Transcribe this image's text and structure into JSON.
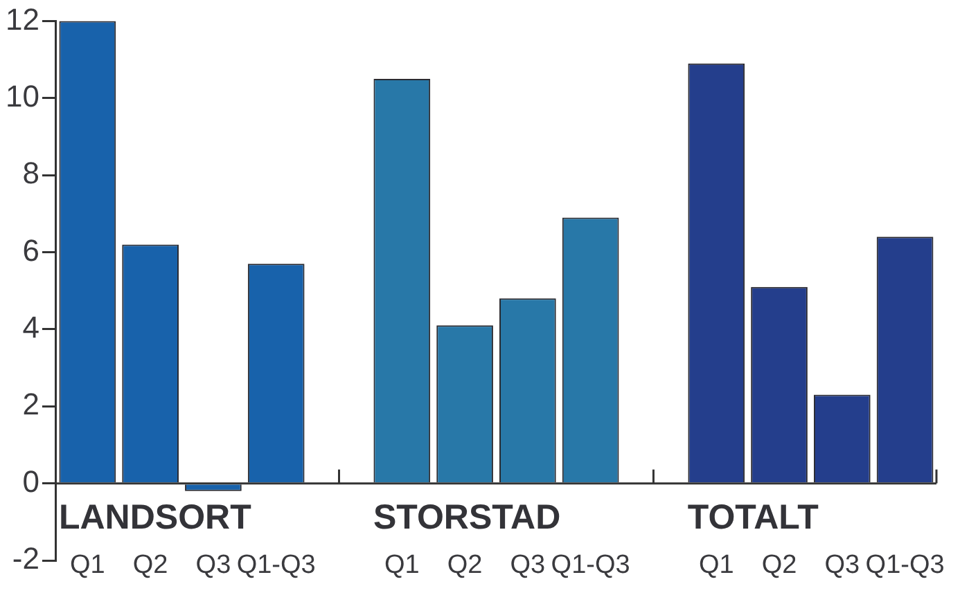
{
  "chart_data": {
    "type": "bar",
    "categories": [
      "Q1",
      "Q2",
      "Q3",
      "Q1-Q3",
      null,
      "Q1",
      "Q2",
      "Q3",
      "Q1-Q3",
      null,
      "Q1",
      "Q2",
      "Q3",
      "Q1-Q3"
    ],
    "series": [
      {
        "name": "LANDSORT",
        "color": "#1862ab",
        "values": [
          12.0,
          6.2,
          -0.2,
          5.7,
          null,
          null,
          null,
          null,
          null,
          null,
          null,
          null,
          null,
          null
        ]
      },
      {
        "name": "STORSTAD",
        "color": "#2878a8",
        "values": [
          null,
          null,
          null,
          null,
          null,
          10.5,
          4.1,
          4.8,
          6.9,
          null,
          null,
          null,
          null,
          null
        ]
      },
      {
        "name": "TOTALT",
        "color": "#243e8c",
        "values": [
          null,
          null,
          null,
          null,
          null,
          null,
          null,
          null,
          null,
          null,
          10.9,
          5.1,
          2.3,
          6.4
        ]
      }
    ],
    "ylim": [
      -2,
      12
    ],
    "yticks": [
      -2,
      0,
      2,
      4,
      6,
      8,
      10,
      12
    ],
    "grid": false,
    "legend": false
  }
}
